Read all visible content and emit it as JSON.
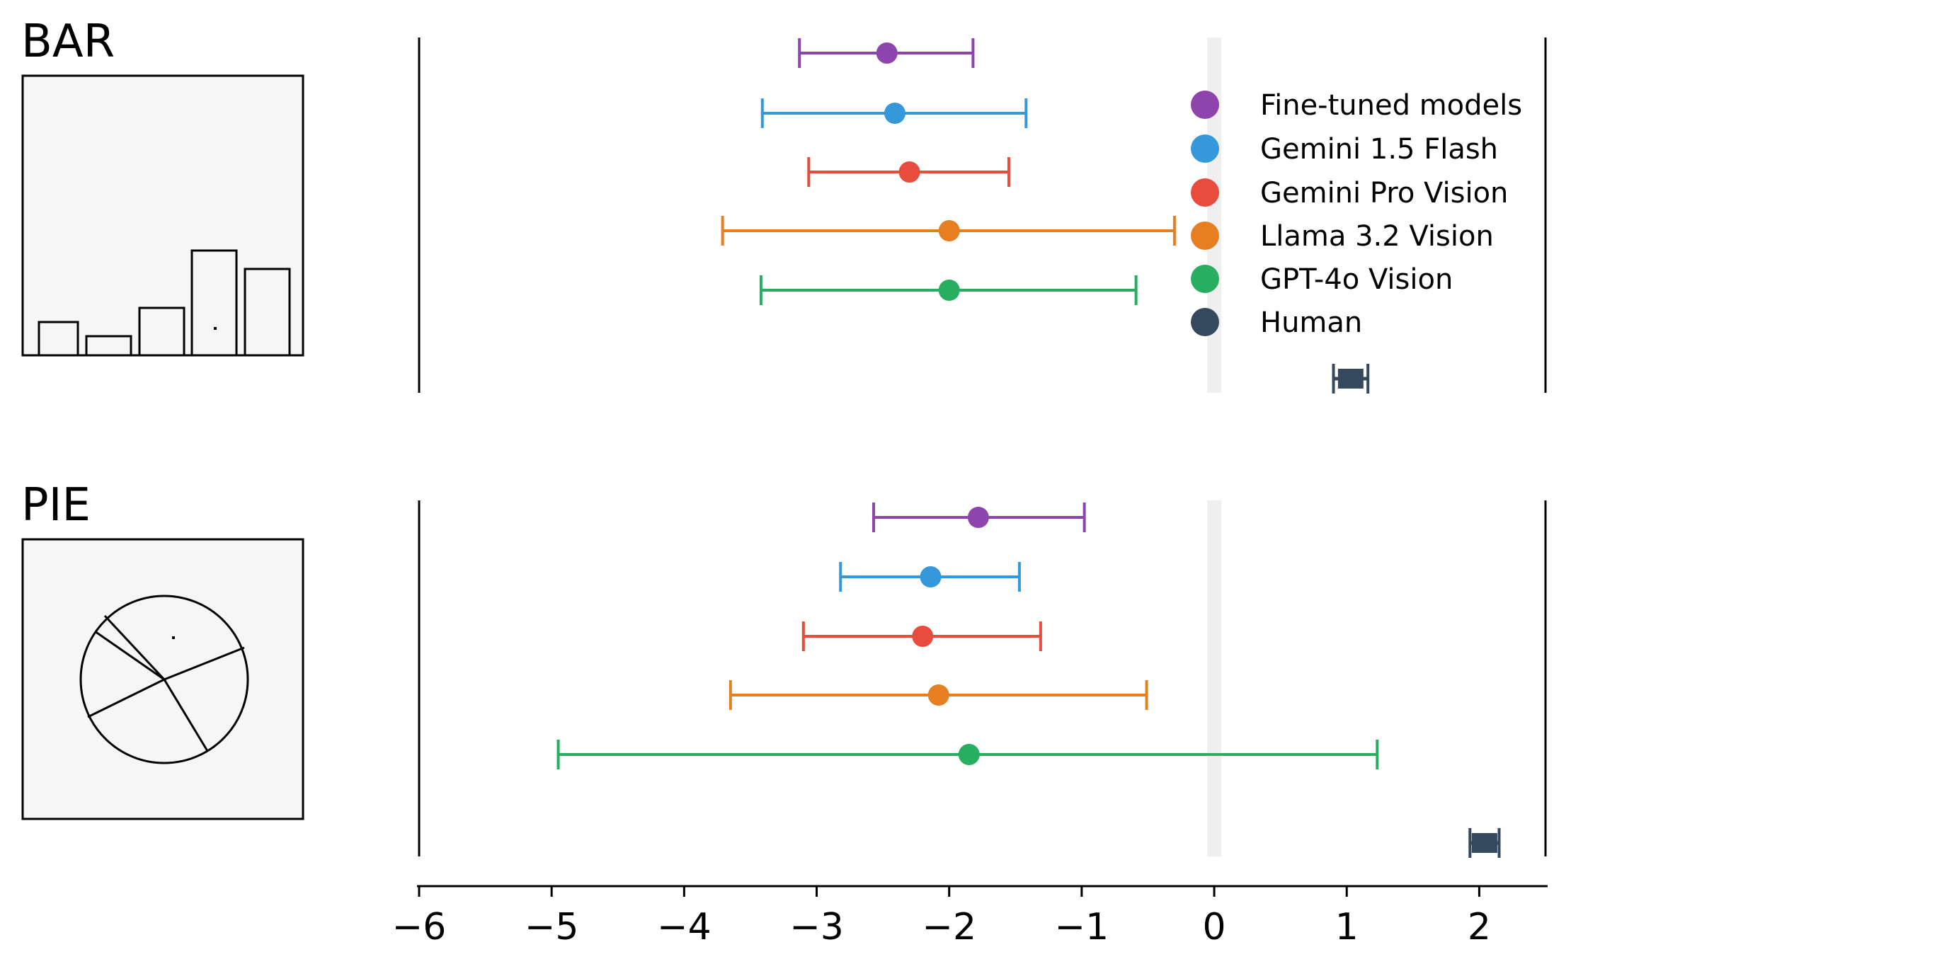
{
  "chart_data": {
    "type": "errorbar",
    "xlim": [
      -6,
      2.5
    ],
    "xticks": [
      -6,
      -5,
      -4,
      -3,
      -2,
      -1,
      0,
      1,
      2
    ],
    "xtick_labels": [
      "−6",
      "−5",
      "−4",
      "−3",
      "−2",
      "−1",
      "0",
      "1",
      "2"
    ],
    "reference_line_x": 0,
    "legend_placement": "top-right",
    "series_legend": [
      {
        "name": "Fine-tuned models",
        "color": "#8e44ad"
      },
      {
        "name": "Gemini 1.5 Flash",
        "color": "#3498db"
      },
      {
        "name": "Gemini Pro Vision",
        "color": "#e74c3c"
      },
      {
        "name": "Llama 3.2 Vision",
        "color": "#e67e22"
      },
      {
        "name": "GPT-4o Vision",
        "color": "#27ae60"
      },
      {
        "name": "Human",
        "color": "#34495e"
      }
    ],
    "panels": [
      {
        "title": "BAR",
        "thumbnail_icon": "bar-chart-thumbnail",
        "points": [
          {
            "series": "Fine-tuned models",
            "mean": -2.47,
            "low": -3.13,
            "high": -1.82
          },
          {
            "series": "Gemini 1.5 Flash",
            "mean": -2.41,
            "low": -3.41,
            "high": -1.42
          },
          {
            "series": "Gemini Pro Vision",
            "mean": -2.3,
            "low": -3.06,
            "high": -1.55
          },
          {
            "series": "Llama 3.2 Vision",
            "mean": -2.0,
            "low": -3.71,
            "high": -0.3
          },
          {
            "series": "GPT-4o Vision",
            "mean": -2.0,
            "low": -3.42,
            "high": -0.59
          },
          {
            "series": "Human",
            "mean": 1.03,
            "low": 0.9,
            "high": 1.16
          }
        ]
      },
      {
        "title": "PIE",
        "thumbnail_icon": "pie-chart-thumbnail",
        "points": [
          {
            "series": "Fine-tuned models",
            "mean": -1.78,
            "low": -2.57,
            "high": -0.98
          },
          {
            "series": "Gemini 1.5 Flash",
            "mean": -2.14,
            "low": -2.82,
            "high": -1.47
          },
          {
            "series": "Gemini Pro Vision",
            "mean": -2.2,
            "low": -3.1,
            "high": -1.31
          },
          {
            "series": "Llama 3.2 Vision",
            "mean": -2.08,
            "low": -3.65,
            "high": -0.51
          },
          {
            "series": "GPT-4o Vision",
            "mean": -1.85,
            "low": -4.95,
            "high": 1.23
          },
          {
            "series": "Human",
            "mean": 2.04,
            "low": 1.93,
            "high": 2.15
          }
        ]
      }
    ]
  }
}
